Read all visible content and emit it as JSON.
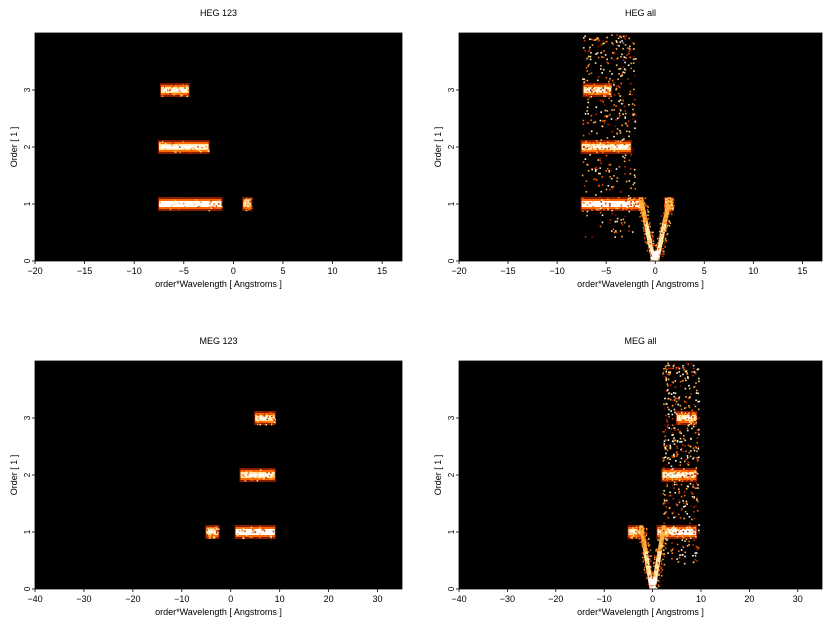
{
  "figure": {
    "background": "#ffffff",
    "plot_background": "#000000",
    "colormap": [
      "#3a0000",
      "#7a0a00",
      "#c02800",
      "#ff6a00",
      "#ffb040",
      "#ffe9a8",
      "#ffffff"
    ]
  },
  "chart_data": [
    {
      "type": "heatmap",
      "title": "HEG 123",
      "xlabel": "order*Wavelength [ Angstroms ]",
      "ylabel": "Order [ 1 ]",
      "xlim": [
        -20,
        17
      ],
      "ylim": [
        0,
        4
      ],
      "xticks": [
        -20,
        -15,
        -10,
        -5,
        0,
        5,
        10,
        15
      ],
      "yticks": [
        0,
        1,
        2,
        3
      ],
      "features": [
        {
          "kind": "band",
          "order": 1,
          "x": [
            -7.5,
            -1.2
          ],
          "intensity": 1.0
        },
        {
          "kind": "band",
          "order": 1,
          "x": [
            1.0,
            1.8
          ],
          "intensity": 0.9
        },
        {
          "kind": "band",
          "order": 2,
          "x": [
            -7.5,
            -2.5
          ],
          "intensity": 0.95
        },
        {
          "kind": "band",
          "order": 3,
          "x": [
            -7.3,
            -4.5
          ],
          "intensity": 0.95
        }
      ]
    },
    {
      "type": "heatmap",
      "title": "HEG all",
      "xlabel": "order*Wavelength [ Angstroms ]",
      "ylabel": "Order [ 1 ]",
      "xlim": [
        -20,
        17
      ],
      "ylim": [
        0,
        4
      ],
      "xticks": [
        -20,
        -15,
        -10,
        -5,
        0,
        5,
        10,
        15
      ],
      "yticks": [
        0,
        1,
        2,
        3
      ],
      "features": [
        {
          "kind": "band",
          "order": 1,
          "x": [
            -7.5,
            -1.2
          ],
          "intensity": 1.0
        },
        {
          "kind": "band",
          "order": 1,
          "x": [
            1.0,
            1.8
          ],
          "intensity": 0.9
        },
        {
          "kind": "band",
          "order": 2,
          "x": [
            -7.5,
            -2.5
          ],
          "intensity": 0.95
        },
        {
          "kind": "band",
          "order": 3,
          "x": [
            -7.3,
            -4.5
          ],
          "intensity": 0.95
        },
        {
          "kind": "cone",
          "apex_x": 0,
          "slope": 1.2,
          "y_range": [
            0,
            1.1
          ],
          "intensity": 0.9
        },
        {
          "kind": "scatter",
          "x": [
            -7.5,
            -2.0
          ],
          "y_range": [
            0.4,
            4.0
          ],
          "density": 0.5
        }
      ]
    },
    {
      "type": "heatmap",
      "title": "MEG 123",
      "xlabel": "order*Wavelength [ Angstroms ]",
      "ylabel": "Order [ 1 ]",
      "xlim": [
        -40,
        35
      ],
      "ylim": [
        0,
        4
      ],
      "xticks": [
        -40,
        -30,
        -20,
        -10,
        0,
        10,
        20,
        30
      ],
      "yticks": [
        0,
        1,
        2,
        3
      ],
      "features": [
        {
          "kind": "band",
          "order": 1,
          "x": [
            -5.0,
            -2.5
          ],
          "intensity": 0.9
        },
        {
          "kind": "band",
          "order": 1,
          "x": [
            1.0,
            9.0
          ],
          "intensity": 1.0
        },
        {
          "kind": "band",
          "order": 2,
          "x": [
            2.0,
            9.0
          ],
          "intensity": 0.95
        },
        {
          "kind": "band",
          "order": 3,
          "x": [
            5.0,
            9.0
          ],
          "intensity": 0.95
        }
      ]
    },
    {
      "type": "heatmap",
      "title": "MEG all",
      "xlabel": "order*Wavelength [ Angstroms ]",
      "ylabel": "Order [ 1 ]",
      "xlim": [
        -40,
        35
      ],
      "ylim": [
        0,
        4
      ],
      "xticks": [
        -40,
        -30,
        -20,
        -10,
        0,
        10,
        20,
        30
      ],
      "yticks": [
        0,
        1,
        2,
        3
      ],
      "features": [
        {
          "kind": "band",
          "order": 1,
          "x": [
            -5.0,
            -2.5
          ],
          "intensity": 0.9
        },
        {
          "kind": "band",
          "order": 1,
          "x": [
            1.0,
            9.0
          ],
          "intensity": 1.0
        },
        {
          "kind": "band",
          "order": 2,
          "x": [
            2.0,
            9.0
          ],
          "intensity": 0.95
        },
        {
          "kind": "band",
          "order": 3,
          "x": [
            5.0,
            9.0
          ],
          "intensity": 0.95
        },
        {
          "kind": "cone",
          "apex_x": 0,
          "slope": 2.0,
          "y_range": [
            0,
            1.1
          ],
          "intensity": 0.9
        },
        {
          "kind": "scatter",
          "x": [
            2.0,
            9.5
          ],
          "y_range": [
            0.4,
            4.0
          ],
          "density": 0.55
        }
      ]
    }
  ]
}
